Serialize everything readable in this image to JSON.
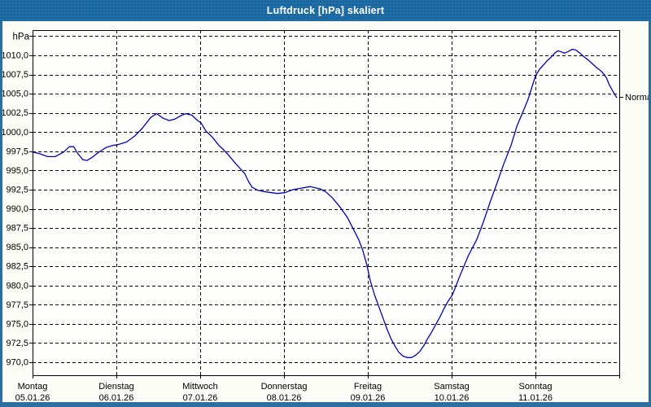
{
  "window": {
    "title": "Luftdruck [hPa] skaliert"
  },
  "colors": {
    "titlebar_bg": "#1f6ea7",
    "titlebar_text": "#ffffff",
    "window_border": "#2a6fa0",
    "content_bg": "#fdfdf7",
    "plot_bg": "#fefefc",
    "grid": "#000000",
    "axis": "#000000",
    "series": "#0000bf",
    "label_text": "#000000"
  },
  "chart_data": {
    "type": "line",
    "title": "Luftdruck [hPa] skaliert",
    "unit_label": "hPa",
    "grid": "dashed",
    "legend_position": "none",
    "normal_marker": {
      "label": "Normal",
      "value": 1004.6
    },
    "y_axis": {
      "grid_min": 970.0,
      "grid_max": 1012.5,
      "step": 2.5,
      "labeled_min": 970.0,
      "labeled_max": 1010.0,
      "tick_labels": [
        "1010,0",
        "1007,5",
        "1005,0",
        "1002,5",
        "1000,0",
        "997,5",
        "995,0",
        "992,5",
        "990,0",
        "987,5",
        "985,0",
        "982,5",
        "980,0",
        "977,5",
        "975,0",
        "972,5",
        "970,0"
      ]
    },
    "x_axis": {
      "unit": "days",
      "range_days": 7,
      "days": [
        {
          "name": "Montag",
          "date": "05.01.26"
        },
        {
          "name": "Dienstag",
          "date": "06.01.26"
        },
        {
          "name": "Mittwoch",
          "date": "07.01.26"
        },
        {
          "name": "Donnerstag",
          "date": "08.01.26"
        },
        {
          "name": "Freitag",
          "date": "09.01.26"
        },
        {
          "name": "Samstag",
          "date": "10.01.26"
        },
        {
          "name": "Sonntag",
          "date": "11.01.26"
        }
      ]
    },
    "series": [
      {
        "name": "Luftdruck",
        "color": "#0000bf",
        "points": [
          [
            0.0,
            997.4
          ],
          [
            0.08,
            997.2
          ],
          [
            0.18,
            996.8
          ],
          [
            0.27,
            996.8
          ],
          [
            0.37,
            997.4
          ],
          [
            0.44,
            998.1
          ],
          [
            0.49,
            998.1
          ],
          [
            0.54,
            997.2
          ],
          [
            0.6,
            996.4
          ],
          [
            0.65,
            996.3
          ],
          [
            0.71,
            996.7
          ],
          [
            0.78,
            997.3
          ],
          [
            0.88,
            998.0
          ],
          [
            0.97,
            998.3
          ],
          [
            1.0,
            998.3
          ],
          [
            1.12,
            998.7
          ],
          [
            1.22,
            999.5
          ],
          [
            1.31,
            1000.5
          ],
          [
            1.41,
            1001.9
          ],
          [
            1.48,
            1002.4
          ],
          [
            1.56,
            1001.8
          ],
          [
            1.63,
            1001.5
          ],
          [
            1.7,
            1001.7
          ],
          [
            1.78,
            1002.2
          ],
          [
            1.83,
            1002.4
          ],
          [
            1.9,
            1002.2
          ],
          [
            1.97,
            1001.5
          ],
          [
            2.01,
            1001.2
          ],
          [
            2.07,
            1000.1
          ],
          [
            2.14,
            999.4
          ],
          [
            2.22,
            998.3
          ],
          [
            2.27,
            997.8
          ],
          [
            2.33,
            997.1
          ],
          [
            2.43,
            995.8
          ],
          [
            2.53,
            994.6
          ],
          [
            2.58,
            993.5
          ],
          [
            2.62,
            992.8
          ],
          [
            2.69,
            992.4
          ],
          [
            2.79,
            992.2
          ],
          [
            2.92,
            992.0
          ],
          [
            3.01,
            992.1
          ],
          [
            3.11,
            992.5
          ],
          [
            3.21,
            992.7
          ],
          [
            3.31,
            992.9
          ],
          [
            3.43,
            992.6
          ],
          [
            3.5,
            992.2
          ],
          [
            3.58,
            991.4
          ],
          [
            3.67,
            990.2
          ],
          [
            3.76,
            988.8
          ],
          [
            3.82,
            987.5
          ],
          [
            3.89,
            986.0
          ],
          [
            3.94,
            984.6
          ],
          [
            3.99,
            982.6
          ],
          [
            4.03,
            980.6
          ],
          [
            4.08,
            978.8
          ],
          [
            4.13,
            977.3
          ],
          [
            4.18,
            975.8
          ],
          [
            4.23,
            974.3
          ],
          [
            4.28,
            973.0
          ],
          [
            4.33,
            972.0
          ],
          [
            4.37,
            971.3
          ],
          [
            4.42,
            970.8
          ],
          [
            4.47,
            970.6
          ],
          [
            4.52,
            970.6
          ],
          [
            4.57,
            970.9
          ],
          [
            4.62,
            971.4
          ],
          [
            4.67,
            972.2
          ],
          [
            4.71,
            973.0
          ],
          [
            4.76,
            973.9
          ],
          [
            4.81,
            974.9
          ],
          [
            4.86,
            975.9
          ],
          [
            4.91,
            977.0
          ],
          [
            4.96,
            978.0
          ],
          [
            5.01,
            978.8
          ],
          [
            5.1,
            981.3
          ],
          [
            5.2,
            983.9
          ],
          [
            5.3,
            986.0
          ],
          [
            5.38,
            988.3
          ],
          [
            5.46,
            990.9
          ],
          [
            5.54,
            993.3
          ],
          [
            5.62,
            995.8
          ],
          [
            5.71,
            998.3
          ],
          [
            5.78,
            1000.8
          ],
          [
            5.85,
            1002.6
          ],
          [
            5.91,
            1004.2
          ],
          [
            5.95,
            1005.6
          ],
          [
            6.0,
            1007.3
          ],
          [
            6.05,
            1008.2
          ],
          [
            6.1,
            1008.8
          ],
          [
            6.14,
            1009.3
          ],
          [
            6.19,
            1009.8
          ],
          [
            6.23,
            1010.3
          ],
          [
            6.27,
            1010.6
          ],
          [
            6.32,
            1010.4
          ],
          [
            6.35,
            1010.3
          ],
          [
            6.39,
            1010.5
          ],
          [
            6.44,
            1010.8
          ],
          [
            6.48,
            1010.7
          ],
          [
            6.53,
            1010.3
          ],
          [
            6.58,
            1009.8
          ],
          [
            6.63,
            1009.4
          ],
          [
            6.68,
            1008.9
          ],
          [
            6.73,
            1008.4
          ],
          [
            6.78,
            1008.0
          ],
          [
            6.82,
            1007.5
          ],
          [
            6.85,
            1007.0
          ],
          [
            6.88,
            1006.2
          ],
          [
            6.91,
            1005.6
          ],
          [
            6.94,
            1005.0
          ],
          [
            6.97,
            1004.5
          ]
        ]
      }
    ]
  }
}
